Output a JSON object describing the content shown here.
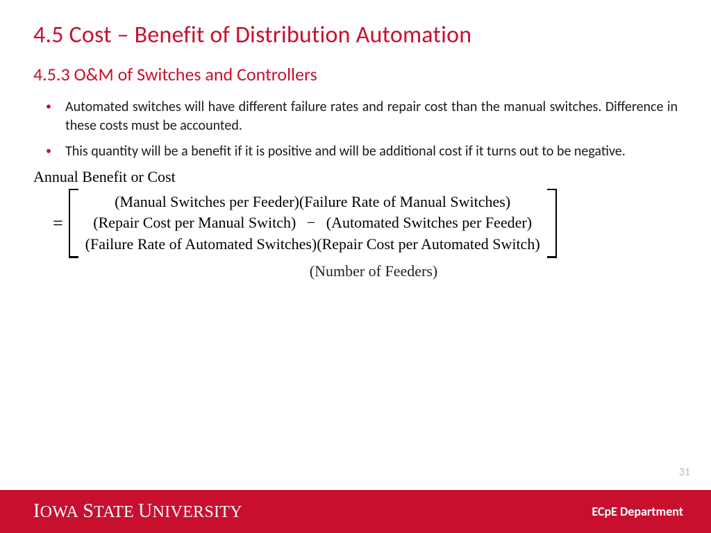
{
  "colors": {
    "accent": "#c8102e",
    "text": "#1a1a1a",
    "page_num": "#b7b7b7",
    "footer_bg": "#c8102e",
    "footer_text": "#ffffff",
    "background": "#ffffff"
  },
  "typography": {
    "title_fontsize": 34,
    "subtitle_fontsize": 26,
    "body_fontsize": 20,
    "formula_fontsize": 22,
    "body_font": "Calibri",
    "formula_font": "Times New Roman"
  },
  "title": "4.5 Cost – Benefit of Distribution Automation",
  "subtitle": "4.5.3 O&M of Switches and Controllers",
  "bullets": [
    "Automated switches will have different failure rates and repair cost than the manual switches. Difference in these costs must be accounted.",
    "This quantity will be a benefit if it is positive and will be additional cost if it turns out to be negative."
  ],
  "formula": {
    "label": "Annual Benefit or Cost",
    "equals": "=",
    "rows": [
      {
        "left": "(Manual Switches per Feeder)(Failure Rate of Manual Switches)"
      },
      {
        "left": "(Repair Cost per Manual Switch)",
        "op": "−",
        "right": "(Automated Switches per Feeder)"
      },
      {
        "left": "(Failure Rate of Automated Switches)(Repair Cost per Automated Switch)"
      }
    ],
    "trailing": "(Number of Feeders)"
  },
  "page_number": "31",
  "footer": {
    "university_parts": [
      "Iowa",
      "State",
      "University"
    ],
    "department": "ECpE Department"
  }
}
